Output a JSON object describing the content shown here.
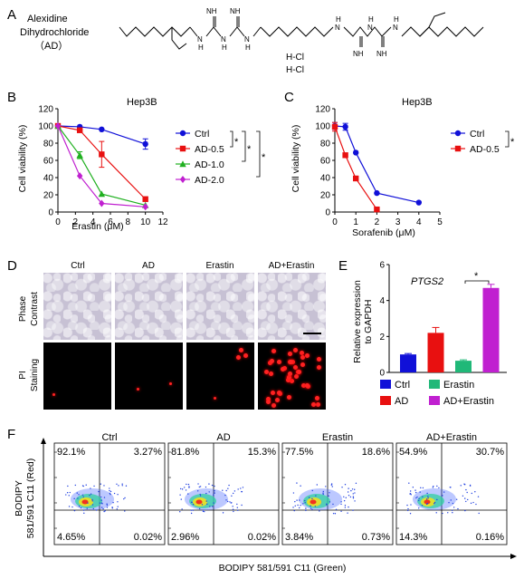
{
  "panel_letters": [
    "A",
    "B",
    "C",
    "D",
    "E",
    "F"
  ],
  "panelA": {
    "compound": [
      "Alexidine",
      "Dihydrochloride",
      "（AD）"
    ],
    "hcl": [
      "H-Cl",
      "H-Cl"
    ],
    "atoms": {
      "nh": "NH",
      "hn": "HN",
      "h": "H",
      "n": "N"
    }
  },
  "sig": "*",
  "colors": {
    "ctrl": "#1010d8",
    "ad05": "#e81010",
    "ad10": "#20b020",
    "ad20": "#c020d0",
    "erastin_bar": "#20b878"
  },
  "panelD": {
    "columns": [
      "Ctrl",
      "AD",
      "Erastin",
      "AD+Erastin"
    ],
    "rows": [
      [
        "Phase",
        "Contrast"
      ],
      [
        "PI",
        "Staining"
      ]
    ]
  },
  "panelF": {
    "ylabel": [
      "BODIPY",
      "581/591 C11 (Red)"
    ],
    "xlabel": "BODIPY 581/591 C11 (Green)",
    "plots": [
      {
        "title": "Ctrl",
        "ul": "92.1%",
        "ur": "3.27%",
        "ll": "4.65%",
        "lr": "0.02%"
      },
      {
        "title": "AD",
        "ul": "81.8%",
        "ur": "15.3%",
        "ll": "2.96%",
        "lr": "0.02%"
      },
      {
        "title": "Erastin",
        "ul": "77.5%",
        "ur": "18.6%",
        "ll": "3.84%",
        "lr": "0.73%"
      },
      {
        "title": "AD+Erastin",
        "ul": "54.9%",
        "ur": "30.7%",
        "ll": "14.3%",
        "lr": "0.16%"
      }
    ]
  },
  "chart_data": [
    {
      "type": "line",
      "title": "Hep3B",
      "xlabel": "Erastin (μM)",
      "ylabel": "Cell viability (%)",
      "xlim": [
        0,
        12
      ],
      "ylim": [
        0,
        120
      ],
      "xticks": [
        0,
        2,
        4,
        6,
        8,
        10,
        12
      ],
      "yticks": [
        0,
        20,
        40,
        60,
        80,
        100,
        120
      ],
      "legend_position": "right",
      "series": [
        {
          "name": "Ctrl",
          "color": "#1010d8",
          "marker": "circle",
          "x": [
            0,
            2.5,
            5,
            10
          ],
          "y": [
            100,
            99,
            96,
            79
          ],
          "err": [
            0,
            0,
            0,
            6
          ]
        },
        {
          "name": "AD-0.5",
          "color": "#e81010",
          "marker": "square",
          "x": [
            0,
            2.5,
            5,
            10
          ],
          "y": [
            100,
            95,
            67,
            15
          ],
          "err": [
            0,
            0,
            15,
            0
          ]
        },
        {
          "name": "AD-1.0",
          "color": "#20b020",
          "marker": "triangle",
          "x": [
            0,
            2.5,
            5,
            10
          ],
          "y": [
            100,
            66,
            21,
            8
          ],
          "err": [
            0,
            4,
            0,
            0
          ]
        },
        {
          "name": "AD-2.0",
          "color": "#c020d0",
          "marker": "diamond",
          "x": [
            0,
            2.5,
            5,
            10
          ],
          "y": [
            100,
            42,
            10,
            6
          ],
          "err": [
            0,
            0,
            0,
            0
          ]
        }
      ]
    },
    {
      "type": "line",
      "title": "Hep3B",
      "xlabel": "Sorafenib (μM)",
      "ylabel": "Cell viability (%)",
      "xlim": [
        0,
        5
      ],
      "ylim": [
        0,
        120
      ],
      "xticks": [
        0,
        1,
        2,
        3,
        4,
        5
      ],
      "yticks": [
        0,
        20,
        40,
        60,
        80,
        100,
        120
      ],
      "legend_position": "right",
      "series": [
        {
          "name": "Ctrl",
          "color": "#1010d8",
          "marker": "circle",
          "x": [
            0,
            0.5,
            1,
            2,
            4
          ],
          "y": [
            100,
            99,
            69,
            22,
            11
          ],
          "err": [
            4,
            4,
            0,
            0,
            0
          ]
        },
        {
          "name": "AD-0.5",
          "color": "#e81010",
          "marker": "square",
          "x": [
            0,
            0.5,
            1,
            2
          ],
          "y": [
            99,
            66,
            39,
            3
          ],
          "err": [
            5,
            0,
            0,
            0
          ]
        }
      ]
    },
    {
      "type": "bar",
      "title": "PTGS2",
      "ylabel": "Relative expression to GAPDH",
      "ylim": [
        0,
        6
      ],
      "yticks": [
        0,
        2,
        4,
        6
      ],
      "categories": [
        "Ctrl",
        "AD",
        "Erastin",
        "AD+Erastin"
      ],
      "values": [
        1.0,
        2.2,
        0.65,
        4.7
      ],
      "errors": [
        0.05,
        0.3,
        0.05,
        0.2
      ],
      "colors": [
        "#1010d8",
        "#e81010",
        "#20b878",
        "#c020d0"
      ],
      "legend_position": "bottom"
    }
  ]
}
